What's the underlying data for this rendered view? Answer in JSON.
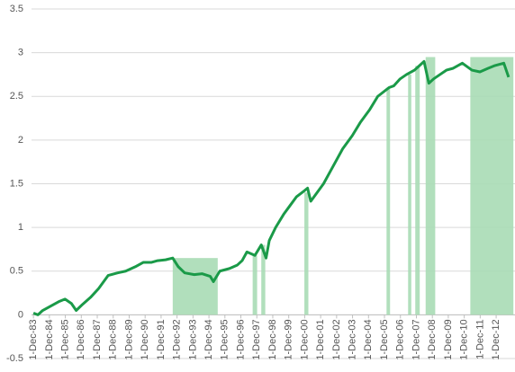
{
  "chart_data": {
    "type": "line",
    "x": [
      1983.92,
      1984.2,
      1984.5,
      1985.0,
      1985.5,
      1985.9,
      1986.3,
      1986.6,
      1987.0,
      1987.5,
      1988.0,
      1988.6,
      1989.2,
      1989.7,
      1990.3,
      1990.8,
      1991.3,
      1991.7,
      1992.2,
      1992.65,
      1993.0,
      1993.4,
      1994.0,
      1994.5,
      1995.0,
      1995.2,
      1995.6,
      1996.2,
      1996.7,
      1997.0,
      1997.3,
      1997.8,
      1998.2,
      1998.5,
      1998.7,
      1999.1,
      1999.6,
      2000.0,
      2000.4,
      2000.9,
      2001.1,
      2001.3,
      2001.7,
      2002.1,
      2002.7,
      2003.3,
      2003.9,
      2004.4,
      2005.0,
      2005.5,
      2006.2,
      2006.5,
      2006.9,
      2007.3,
      2007.8,
      2008.1,
      2008.4,
      2008.7,
      2009.0,
      2009.4,
      2009.8,
      2010.2,
      2010.8,
      2011.4,
      2011.9,
      2012.4,
      2012.8,
      2013.4,
      2013.7
    ],
    "series": [
      {
        "color": "#1a9a48",
        "values": [
          0.02,
          0.0,
          0.05,
          0.1,
          0.15,
          0.18,
          0.13,
          0.05,
          0.12,
          0.2,
          0.3,
          0.45,
          0.48,
          0.5,
          0.55,
          0.6,
          0.6,
          0.62,
          0.63,
          0.65,
          0.55,
          0.48,
          0.46,
          0.47,
          0.44,
          0.38,
          0.5,
          0.53,
          0.57,
          0.62,
          0.72,
          0.68,
          0.8,
          0.65,
          0.85,
          1.0,
          1.15,
          1.25,
          1.35,
          1.42,
          1.45,
          1.3,
          1.4,
          1.5,
          1.7,
          1.9,
          2.05,
          2.2,
          2.35,
          2.5,
          2.6,
          2.62,
          2.7,
          2.75,
          2.8,
          2.85,
          2.9,
          2.65,
          2.7,
          2.75,
          2.8,
          2.82,
          2.88,
          2.8,
          2.78,
          2.82,
          2.85,
          2.88,
          2.72
        ]
      }
    ],
    "shaded_regions": {
      "color": "#a8dcb5",
      "start": [
        1992.65,
        1997.66,
        1998.2,
        2000.9,
        2006.05,
        2007.4,
        2007.85,
        2008.5,
        2011.3
      ],
      "end": [
        1995.47,
        1997.94,
        1998.45,
        2001.15,
        2006.27,
        2007.6,
        2008.13,
        2009.1,
        2014.0
      ],
      "top": [
        0.65,
        0.68,
        0.8,
        1.4,
        2.6,
        2.75,
        2.85,
        2.95,
        2.95
      ]
    },
    "xlim": [
      1983.8,
      2014.1
    ],
    "xticks": [
      {
        "value": 1983.92,
        "label": "1-Dec-83"
      },
      {
        "value": 1984.92,
        "label": "1-Dec-84"
      },
      {
        "value": 1985.92,
        "label": "1-Dec-85"
      },
      {
        "value": 1986.92,
        "label": "1-Dec-86"
      },
      {
        "value": 1987.92,
        "label": "1-Dec-87"
      },
      {
        "value": 1988.92,
        "label": "1-Dec-88"
      },
      {
        "value": 1989.92,
        "label": "1-Dec-89"
      },
      {
        "value": 1990.92,
        "label": "1-Dec-90"
      },
      {
        "value": 1991.92,
        "label": "1-Dec-91"
      },
      {
        "value": 1992.92,
        "label": "1-Dec-92"
      },
      {
        "value": 1993.92,
        "label": "1-Dec-93"
      },
      {
        "value": 1994.92,
        "label": "1-Dec-94"
      },
      {
        "value": 1995.92,
        "label": "1-Dec-95"
      },
      {
        "value": 1996.92,
        "label": "1-Dec-96"
      },
      {
        "value": 1997.92,
        "label": "1-Dec-97"
      },
      {
        "value": 1998.92,
        "label": "1-Dec-98"
      },
      {
        "value": 1999.92,
        "label": "1-Dec-99"
      },
      {
        "value": 2000.92,
        "label": "1-Dec-00"
      },
      {
        "value": 2001.92,
        "label": "1-Dec-01"
      },
      {
        "value": 2002.92,
        "label": "1-Dec-02"
      },
      {
        "value": 2003.92,
        "label": "1-Dec-03"
      },
      {
        "value": 2004.92,
        "label": "1-Dec-04"
      },
      {
        "value": 2005.92,
        "label": "1-Dec-05"
      },
      {
        "value": 2006.92,
        "label": "1-Dec-06"
      },
      {
        "value": 2007.92,
        "label": "1-Dec-07"
      },
      {
        "value": 2008.92,
        "label": "1-Dec-08"
      },
      {
        "value": 2009.92,
        "label": "1-Dec-09"
      },
      {
        "value": 2010.92,
        "label": "1-Dec-10"
      },
      {
        "value": 2011.92,
        "label": "1-Dec-11"
      },
      {
        "value": 2012.92,
        "label": "1-Dec-12"
      }
    ],
    "ylim": [
      -0.5,
      3.5
    ],
    "yticks": [
      -0.5,
      0,
      0.5,
      1,
      1.5,
      2,
      2.5,
      3,
      3.5
    ],
    "grid": true
  }
}
